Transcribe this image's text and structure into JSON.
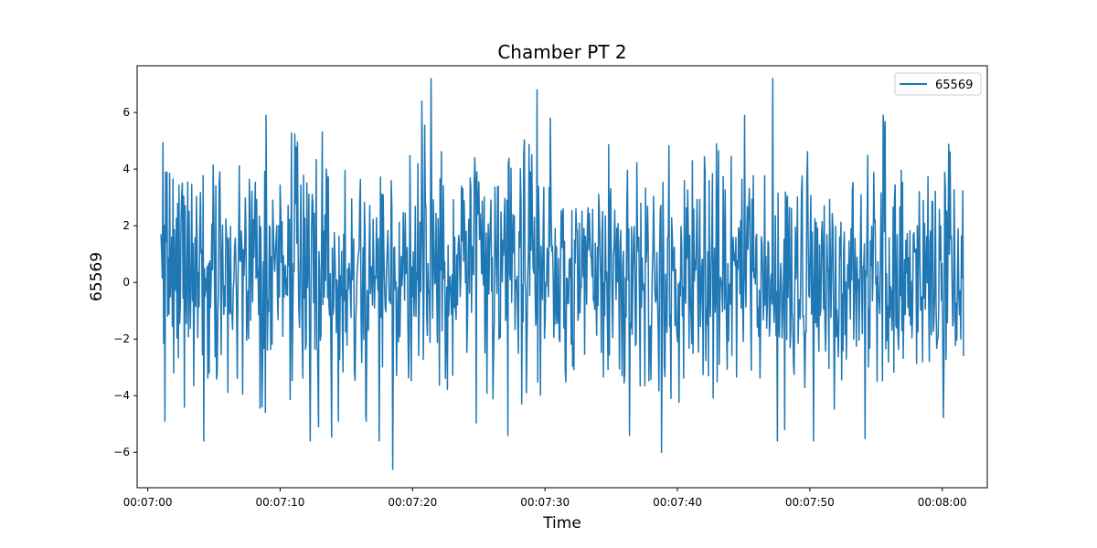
{
  "chart_data": {
    "type": "line",
    "title": "Chamber PT 2",
    "xlabel": "Time",
    "ylabel": "65569",
    "x_range": [
      "00:07:01",
      "00:08:01.6"
    ],
    "xlim": [
      "00:06:59.2",
      "00:08:03.4"
    ],
    "ylim": [
      -7.25,
      7.65
    ],
    "x_ticks": [
      "00:07:00",
      "00:07:10",
      "00:07:20",
      "00:07:30",
      "00:07:40",
      "00:07:50",
      "00:08:00"
    ],
    "y_ticks": [
      -6,
      -4,
      -2,
      0,
      2,
      4,
      6
    ],
    "legend": {
      "entries": [
        "65569"
      ],
      "position": "upper right"
    },
    "grid": false,
    "series": [
      {
        "name": "65569",
        "color": "#1f77b4",
        "sample_count": 1200,
        "seed": 65569,
        "mean": 0.3,
        "std_dev": 2.2,
        "points": [
          {
            "x": "00:07:01.00",
            "y": 1.7
          },
          {
            "x": "00:07:01.30",
            "y": -4.9
          },
          {
            "x": "00:07:12.90",
            "y": -5.1
          },
          {
            "x": "00:07:14.40",
            "y": -4.9
          },
          {
            "x": "00:07:16.50",
            "y": -4.9
          },
          {
            "x": "00:07:18.50",
            "y": -6.6
          },
          {
            "x": "00:07:20.70",
            "y": 6.4
          },
          {
            "x": "00:07:21.40",
            "y": 7.2
          },
          {
            "x": "00:07:24.70",
            "y": 4.4
          },
          {
            "x": "00:07:27.20",
            "y": -5.4
          },
          {
            "x": "00:07:29.40",
            "y": 6.8
          },
          {
            "x": "00:07:30.40",
            "y": 5.8
          },
          {
            "x": "00:07:38.80",
            "y": -6.0
          },
          {
            "x": "00:07:47.20",
            "y": 7.2
          },
          {
            "x": "00:07:48.10",
            "y": -5.2
          },
          {
            "x": "00:08:01.60",
            "y": -2.6
          }
        ]
      }
    ]
  }
}
